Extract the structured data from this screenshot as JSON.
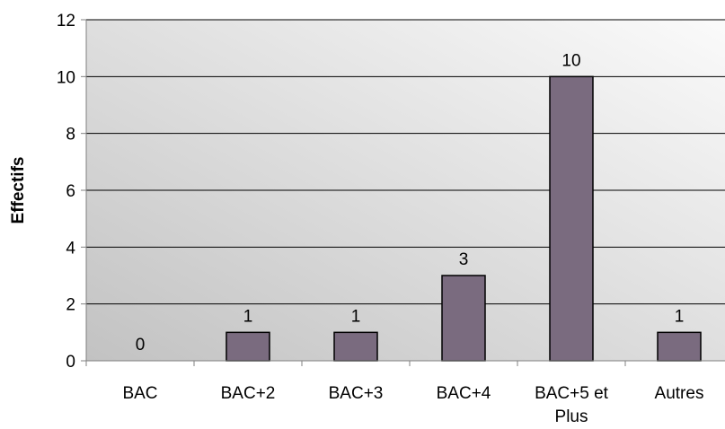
{
  "chart_data": {
    "type": "bar",
    "title": "",
    "xlabel": "",
    "ylabel": "Effectifs",
    "categories": [
      "BAC",
      "BAC+2",
      "BAC+3",
      "BAC+4",
      "BAC+5 et Plus",
      "Autres"
    ],
    "category_lines": [
      [
        "BAC"
      ],
      [
        "BAC+2"
      ],
      [
        "BAC+3"
      ],
      [
        "BAC+4"
      ],
      [
        "BAC+5 et",
        "Plus"
      ],
      [
        "Autres"
      ]
    ],
    "values": [
      0,
      1,
      1,
      3,
      10,
      1
    ],
    "data_labels": [
      "0",
      "1",
      "1",
      "3",
      "10",
      "1"
    ],
    "ylim": [
      0,
      12
    ],
    "yticks": [
      0,
      2,
      4,
      6,
      8,
      10,
      12
    ],
    "grid": true,
    "legend": "none",
    "colors": {
      "bar_fill": "#7a6b7f",
      "bar_stroke": "#000000",
      "plot_bg_light": "#fbfbfb",
      "plot_bg_dark": "#c2c2c2",
      "gridline": "#000000",
      "axis": "#808080"
    }
  }
}
